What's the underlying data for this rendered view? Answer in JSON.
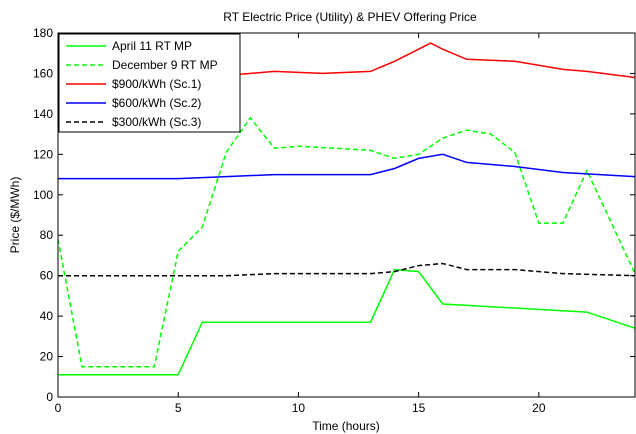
{
  "chart_data": {
    "type": "line",
    "title": "RT Electric Price (Utility) & PHEV Offering Price",
    "xlabel": "Time (hours)",
    "ylabel": "Price ($/MWh)",
    "xlim": [
      0,
      24
    ],
    "ylim": [
      0,
      180
    ],
    "xticks": [
      0,
      5,
      10,
      15,
      20
    ],
    "yticks": [
      0,
      20,
      40,
      60,
      80,
      100,
      120,
      140,
      160,
      180
    ],
    "grid": false,
    "legend_position": "top-left",
    "series": [
      {
        "name": "April 11 RT MP",
        "color": "#00ff00",
        "dash": "solid",
        "x": [
          0,
          5,
          6,
          13,
          14,
          15,
          16,
          22,
          24
        ],
        "y": [
          11,
          11,
          37,
          37,
          63,
          62,
          46,
          42,
          34
        ]
      },
      {
        "name": "December 9 RT MP",
        "color": "#00ff00",
        "dash": "dashed",
        "x": [
          0,
          1,
          4,
          5,
          6,
          7,
          8,
          9,
          10,
          13,
          14,
          15,
          16,
          17,
          18,
          19,
          20,
          21,
          22,
          24
        ],
        "y": [
          78,
          15,
          15,
          72,
          84,
          121,
          138,
          123,
          124,
          122,
          118,
          120,
          128,
          132,
          130,
          121,
          86,
          86,
          112,
          61
        ]
      },
      {
        "name": "$900/kWh (Sc.1)",
        "color": "#ff0000",
        "dash": "solid",
        "x": [
          0,
          1,
          3,
          5,
          7,
          9,
          11,
          13,
          14,
          15,
          15.5,
          16,
          17,
          19,
          21,
          22,
          24
        ],
        "y": [
          160,
          159,
          159,
          159,
          159,
          161,
          160,
          161,
          166,
          172,
          175,
          172,
          167,
          166,
          162,
          161,
          158
        ]
      },
      {
        "name": "$600/kWh (Sc.2)",
        "color": "#0000ff",
        "dash": "solid",
        "x": [
          0,
          3,
          5,
          7,
          9,
          11,
          13,
          14,
          15,
          16,
          17,
          19,
          21,
          24
        ],
        "y": [
          108,
          108,
          108,
          109,
          110,
          110,
          110,
          113,
          118,
          120,
          116,
          114,
          111,
          109
        ]
      },
      {
        "name": "$300/kWh (Sc.3)",
        "color": "#000000",
        "dash": "dashed",
        "x": [
          0,
          3,
          5,
          7,
          9,
          11,
          13,
          14,
          15,
          16,
          17,
          19,
          21,
          24
        ],
        "y": [
          60,
          60,
          60,
          60,
          61,
          61,
          61,
          62,
          65,
          66,
          63,
          63,
          61,
          60
        ]
      }
    ]
  }
}
